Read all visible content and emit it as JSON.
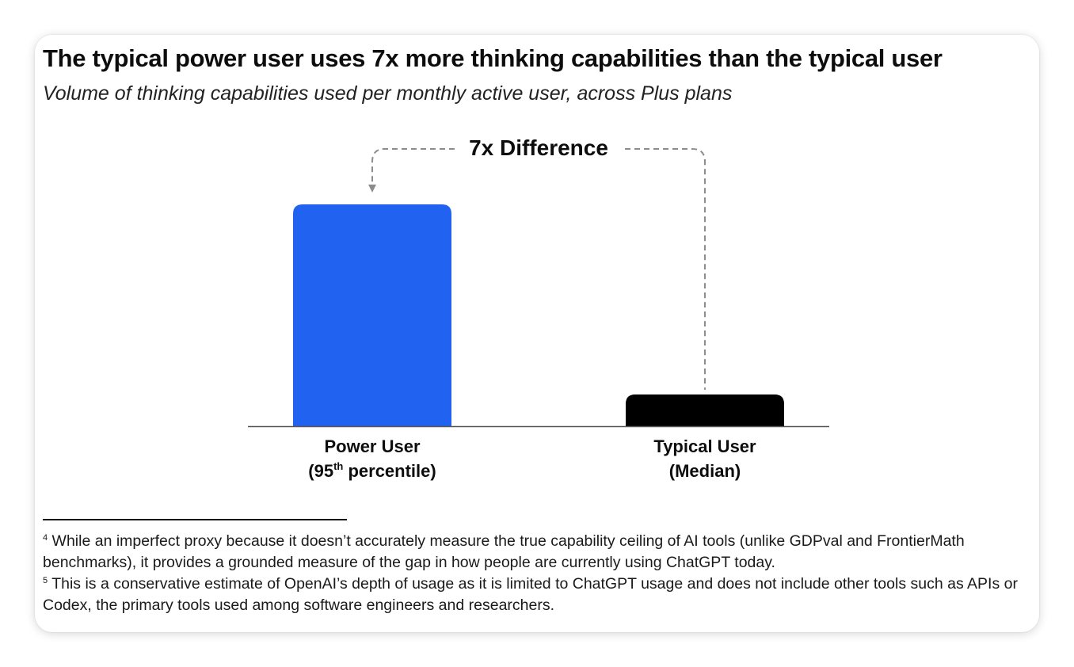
{
  "chart_data": {
    "type": "bar",
    "title": "The typical power user uses 7x more thinking capabilities than the typical user",
    "subtitle": "Volume of thinking capabilities used per monthly active user, across Plus plans",
    "categories": [
      {
        "line1": "Power User",
        "line2_pre": "(95",
        "line2_sup": "th",
        "line2_post": " percentile)"
      },
      {
        "line1": "Typical User",
        "line2_pre": "(Median)",
        "line2_sup": "",
        "line2_post": ""
      }
    ],
    "values": [
      7,
      1
    ],
    "value_unit": "relative (typical user = 1)",
    "colors": [
      "#2163f0",
      "#000000"
    ],
    "annotation": "7x Difference",
    "annotation_color": "#8c8c8c",
    "axis_color": "#555555",
    "ylim": [
      0,
      7
    ]
  },
  "footnotes": [
    {
      "num": "4",
      "text": "While an imperfect proxy because it doesn’t accurately measure the true capability ceiling of AI tools (unlike GDPval and FrontierMath benchmarks), it provides a grounded measure of the gap in how people are currently using ChatGPT today."
    },
    {
      "num": "5",
      "text": "This is a conservative estimate of OpenAI’s depth of usage as it is limited to ChatGPT usage and does not include other tools such as APIs or Codex, the primary tools used among software engineers and researchers."
    }
  ]
}
